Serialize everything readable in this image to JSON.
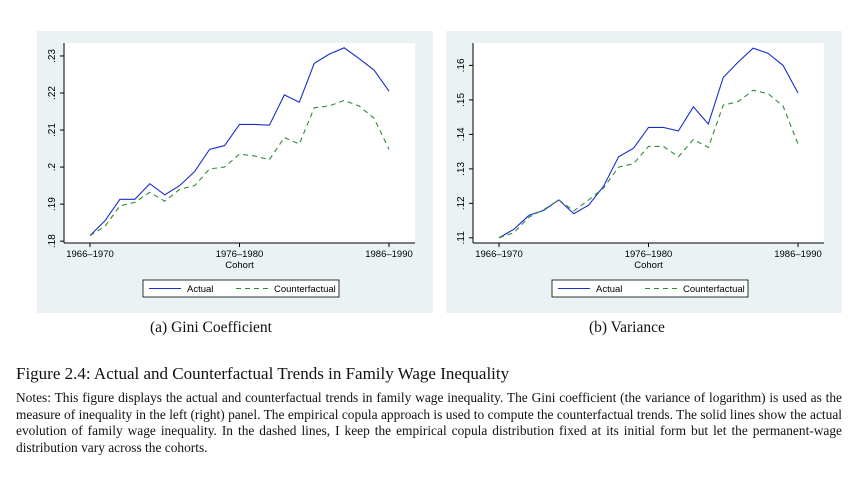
{
  "figure": {
    "title": "Figure 2.4: Actual and Counterfactual Trends in Family Wage Inequality",
    "notes": "Notes: This figure displays the actual and counterfactual trends in family wage inequality. The Gini coefficient (the variance of logarithm) is used as the measure of inequality in the left (right) panel. The empirical copula approach is used to compute the counterfactual trends. The solid lines show the actual evolution of family wage inequality. In the dashed lines, I keep the empirical copula distribution fixed at its initial form but let the permanent-wage distribution vary across the cohorts."
  },
  "colors": {
    "actual": "#1a2ecc",
    "counterfactual": "#2e8b3a",
    "panel_bg": "#eaf2f3",
    "axis": "#000000"
  },
  "chart_data": [
    {
      "type": "line",
      "caption": "(a) Gini Coefficient",
      "xlabel": "Cohort",
      "ylabel": "",
      "x_ticks": [
        "1966–1970",
        "1976–1980",
        "1986–1990"
      ],
      "x_tick_positions": [
        0,
        10,
        20
      ],
      "y_ticks": [
        ".18",
        ".19",
        ".2",
        ".21",
        ".22",
        ".23"
      ],
      "y_tick_values": [
        0.18,
        0.19,
        0.2,
        0.21,
        0.22,
        0.23
      ],
      "xlim": [
        0,
        20
      ],
      "ylim": [
        0.1795,
        0.2335
      ],
      "legend": "bottom",
      "series": [
        {
          "name": "Actual",
          "style": "solid",
          "values": [
            0.1815,
            0.1855,
            0.1913,
            0.1913,
            0.1955,
            0.1925,
            0.195,
            0.1988,
            0.2048,
            0.2058,
            0.2115,
            0.2115,
            0.2113,
            0.2195,
            0.2175,
            0.228,
            0.2305,
            0.2322,
            0.2293,
            0.2262,
            0.2205
          ]
        },
        {
          "name": "Counterfactual",
          "style": "dashed",
          "values": [
            0.1815,
            0.184,
            0.1895,
            0.1905,
            0.1932,
            0.1908,
            0.194,
            0.195,
            0.1995,
            0.2,
            0.2035,
            0.203,
            0.202,
            0.208,
            0.2062,
            0.216,
            0.2165,
            0.218,
            0.2165,
            0.2132,
            0.2048
          ]
        }
      ]
    },
    {
      "type": "line",
      "caption": "(b) Variance",
      "xlabel": "Cohort",
      "ylabel": "",
      "x_ticks": [
        "1966–1970",
        "1976–1980",
        "1986–1990"
      ],
      "x_tick_positions": [
        0,
        10,
        20
      ],
      "y_ticks": [
        ".11",
        ".12",
        ".13",
        ".14",
        ".15",
        ".16"
      ],
      "y_tick_values": [
        0.11,
        0.12,
        0.13,
        0.14,
        0.15,
        0.16
      ],
      "xlim": [
        0,
        20
      ],
      "ylim": [
        0.1085,
        0.1665
      ],
      "legend": "bottom",
      "series": [
        {
          "name": "Actual",
          "style": "solid",
          "values": [
            0.11,
            0.1125,
            0.1165,
            0.118,
            0.121,
            0.117,
            0.1195,
            0.125,
            0.1335,
            0.136,
            0.142,
            0.142,
            0.141,
            0.148,
            0.143,
            0.1565,
            0.161,
            0.165,
            0.1635,
            0.16,
            0.152
          ]
        },
        {
          "name": "Counterfactual",
          "style": "dashed",
          "values": [
            0.11,
            0.1115,
            0.116,
            0.1182,
            0.121,
            0.1178,
            0.121,
            0.1245,
            0.1305,
            0.1315,
            0.1365,
            0.1365,
            0.1335,
            0.1385,
            0.1362,
            0.1485,
            0.1495,
            0.1528,
            0.1518,
            0.1482,
            0.1372
          ]
        }
      ]
    }
  ]
}
